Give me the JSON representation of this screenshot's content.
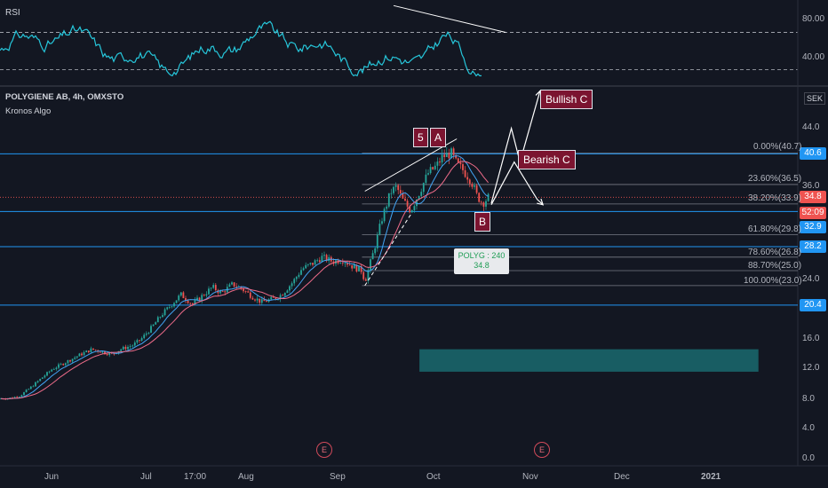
{
  "rsi": {
    "label": "RSI",
    "ticks": [
      "80.00",
      "40.00"
    ],
    "ylim": [
      26,
      100
    ],
    "overbought": 72,
    "oversold": 36,
    "trendline": {
      "from": {
        "date": "2020-09-15",
        "value": 98
      },
      "to": {
        "date": "2020-10-24",
        "value": 72
      }
    },
    "color": "#26c6da"
  },
  "header": {
    "symbol": "POLYGIENE AB, 4h, OMXSTO",
    "indicator": "Kronos Algo",
    "currency": "SEK"
  },
  "wave_labels": {
    "five": "5",
    "a": "A",
    "b": "B",
    "bullish_c": "Bullish C",
    "bearish_c": "Bearish C"
  },
  "tooltip": {
    "line1": "POLYG : 240",
    "line2": "34.8"
  },
  "event_markers": [
    "E",
    "E"
  ],
  "price_boxes": {
    "p40_6": {
      "text": "40.6",
      "color": "#2196f3"
    },
    "p34_8": {
      "text": "34.8",
      "color": "#ef5350"
    },
    "timer": {
      "text": "52:09",
      "color": "#ef5350"
    },
    "p32_9": {
      "text": "32.9",
      "color": "#2196f3"
    },
    "p28_2": {
      "text": "28.2",
      "color": "#2196f3"
    },
    "p20_4": {
      "text": "20.4",
      "color": "#2196f3"
    }
  },
  "y_ticks": [
    "44.0",
    "36.0",
    "24.0",
    "16.0",
    "12.0",
    "8.0",
    "4.0",
    "0.0"
  ],
  "x_ticks": [
    "Jun",
    "Jul",
    "17:00",
    "Aug",
    "Sep",
    "Oct",
    "Nov",
    "Dec",
    "2021"
  ],
  "colors": {
    "background": "#131722",
    "up": "#26a69a",
    "down": "#ef5350",
    "fib": "#787b86",
    "horizontal_lines": "#2196f3",
    "zone": "#1a6a6e",
    "wave_box": "#7b1430"
  },
  "chart_data": {
    "type": "candlestick",
    "title": "POLYGIENE AB, 4h, OMXSTO",
    "ylim": [
      0,
      46
    ],
    "xlim": [
      "2020-05-01",
      "2021-01-20"
    ],
    "close_path": [
      [
        "2020-05-01",
        7.9
      ],
      [
        "2020-05-05",
        8.0
      ],
      [
        "2020-05-08",
        8.3
      ],
      [
        "2020-05-12",
        9.5
      ],
      [
        "2020-05-15",
        10.5
      ],
      [
        "2020-05-19",
        11.8
      ],
      [
        "2020-05-22",
        12.4
      ],
      [
        "2020-05-26",
        13.2
      ],
      [
        "2020-05-29",
        13.8
      ],
      [
        "2020-06-02",
        14.5
      ],
      [
        "2020-06-05",
        14.2
      ],
      [
        "2020-06-09",
        13.8
      ],
      [
        "2020-06-12",
        14.5
      ],
      [
        "2020-06-16",
        15.0
      ],
      [
        "2020-06-19",
        15.8
      ],
      [
        "2020-06-23",
        17.5
      ],
      [
        "2020-06-26",
        19.0
      ],
      [
        "2020-06-30",
        20.6
      ],
      [
        "2020-07-03",
        21.8
      ],
      [
        "2020-07-07",
        20.5
      ],
      [
        "2020-07-10",
        21.5
      ],
      [
        "2020-07-14",
        22.8
      ],
      [
        "2020-07-17",
        22.0
      ],
      [
        "2020-07-21",
        23.2
      ],
      [
        "2020-07-24",
        22.6
      ],
      [
        "2020-07-28",
        21.5
      ],
      [
        "2020-07-31",
        20.8
      ],
      [
        "2020-08-04",
        21.2
      ],
      [
        "2020-08-07",
        21.8
      ],
      [
        "2020-08-11",
        23.5
      ],
      [
        "2020-08-14",
        25.2
      ],
      [
        "2020-08-18",
        26.0
      ],
      [
        "2020-08-21",
        26.8
      ],
      [
        "2020-08-25",
        26.2
      ],
      [
        "2020-08-28",
        26.5
      ],
      [
        "2020-09-01",
        25.5
      ],
      [
        "2020-09-04",
        25.0
      ],
      [
        "2020-09-05",
        23.5
      ],
      [
        "2020-09-08",
        27.5
      ],
      [
        "2020-09-11",
        32.0
      ],
      [
        "2020-09-14",
        35.5
      ],
      [
        "2020-09-16",
        36.2
      ],
      [
        "2020-09-18",
        34.5
      ],
      [
        "2020-09-21",
        33.0
      ],
      [
        "2020-09-24",
        35.5
      ],
      [
        "2020-09-27",
        38.0
      ],
      [
        "2020-09-30",
        39.0
      ],
      [
        "2020-10-02",
        40.2
      ],
      [
        "2020-10-05",
        40.7
      ],
      [
        "2020-10-07",
        39.2
      ],
      [
        "2020-10-09",
        38.5
      ],
      [
        "2020-10-12",
        37.0
      ],
      [
        "2020-10-14",
        35.0
      ],
      [
        "2020-10-16",
        34.0
      ],
      [
        "2020-10-18",
        34.8
      ]
    ],
    "fibonacci": [
      {
        "label": "0.00%(40.7)",
        "price": 40.7
      },
      {
        "label": "23.60%(36.5)",
        "price": 36.5
      },
      {
        "label": "38.20%(33.9)",
        "price": 33.9
      },
      {
        "label": "61.80%(29.8)",
        "price": 29.8
      },
      {
        "label": "78.60%(26.8)",
        "price": 26.8
      },
      {
        "label": "88.70%(25.0)",
        "price": 25.0
      },
      {
        "label": "100.00%(23.0)",
        "price": 23.0
      }
    ],
    "horizontal_levels": [
      40.6,
      32.9,
      28.2,
      20.4
    ],
    "last_price": 34.8,
    "zone": {
      "from": "2020-09-24",
      "to": "2021-01-20",
      "low": 11.5,
      "high": 14.5
    },
    "projection_up": [
      [
        "2020-10-19",
        34.0
      ],
      [
        "2020-10-26",
        44.0
      ],
      [
        "2020-10-29",
        39.5
      ],
      [
        "2020-11-05",
        49.0
      ]
    ],
    "projection_down": [
      [
        "2020-10-19",
        33.8
      ],
      [
        "2020-10-27",
        39.5
      ],
      [
        "2020-11-04",
        34.5
      ],
      [
        "2020-11-06",
        33.8
      ]
    ],
    "channel_upper": [
      [
        "2020-09-05",
        35.6
      ],
      [
        "2020-10-07",
        42.6
      ]
    ],
    "channel_lower": [
      [
        "2020-09-05",
        23.0
      ],
      [
        "2020-09-21",
        32.5
      ]
    ]
  }
}
